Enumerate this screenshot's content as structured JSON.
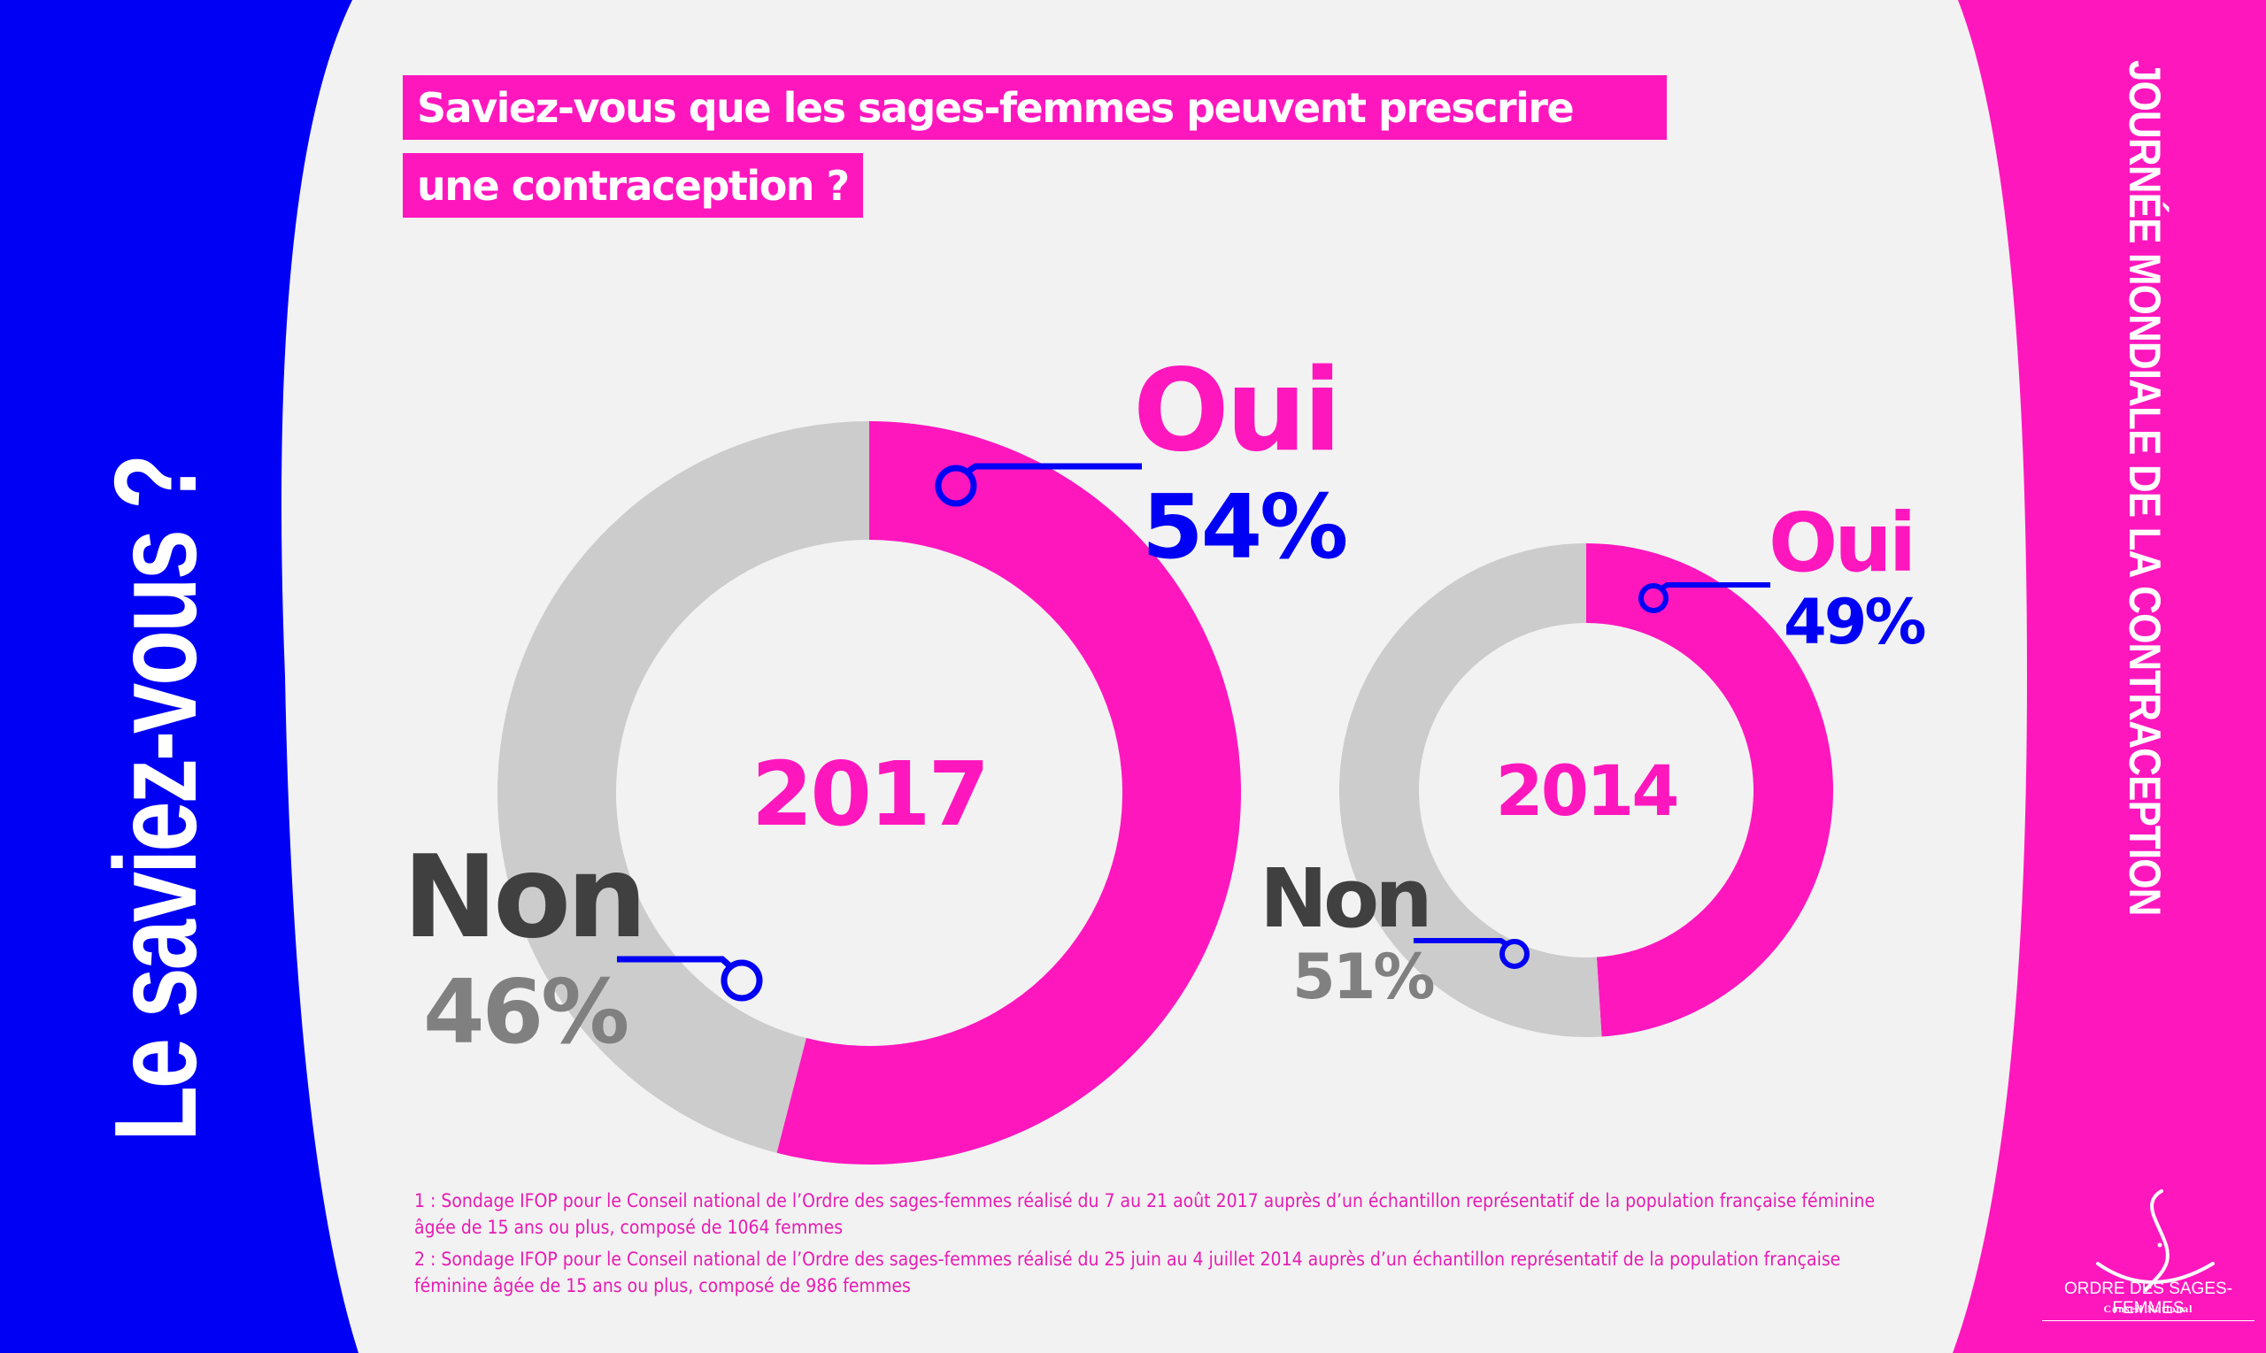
{
  "colors": {
    "blue": "#0000f5",
    "pink": "#ff17be",
    "grey_track": "#cccccc",
    "background": "#f2f2f2",
    "dark_label": "#404040",
    "grey_value": "#808080"
  },
  "left_banner": {
    "text": "Le saviez-vous ?"
  },
  "right_banner": {
    "text": "JOURNÉE MONDIALE DE LA CONTRACEPTION"
  },
  "question": {
    "line1": "Saviez-vous que les sages-femmes peuvent prescrire",
    "line2": "une contraception ?"
  },
  "chart_data": [
    {
      "type": "pie",
      "subtype": "donut",
      "title": "2017",
      "categories": [
        "Oui",
        "Non"
      ],
      "values": [
        54,
        46
      ],
      "labels": [
        "54%",
        "46%"
      ],
      "colors": [
        "#ff17be",
        "#cccccc"
      ],
      "start": "top",
      "direction": "clockwise"
    },
    {
      "type": "pie",
      "subtype": "donut",
      "title": "2014",
      "categories": [
        "Oui",
        "Non"
      ],
      "values": [
        49,
        51
      ],
      "labels": [
        "49%",
        "51%"
      ],
      "colors": [
        "#ff17be",
        "#cccccc"
      ],
      "start": "top",
      "direction": "clockwise"
    }
  ],
  "footnotes": [
    "1 : Sondage IFOP pour le Conseil national de l’Ordre des sages-femmes réalisé du 7 au 21 août 2017 auprès d’un échantillon représentatif de la population française féminine âgée de 15 ans ou plus, composé de 1064 femmes",
    "2 : Sondage IFOP pour le Conseil national de l’Ordre des sages-femmes réalisé du 25 juin au 4 juillet 2014 auprès d’un échantillon représentatif de la population française féminine âgée de 15 ans ou plus, composé de 986 femmes"
  ],
  "logo": {
    "icon": "pregnant-woman-silhouette-icon",
    "name": "ORDRE DES SAGES-FEMMES",
    "subtitle": "Conseil National"
  }
}
